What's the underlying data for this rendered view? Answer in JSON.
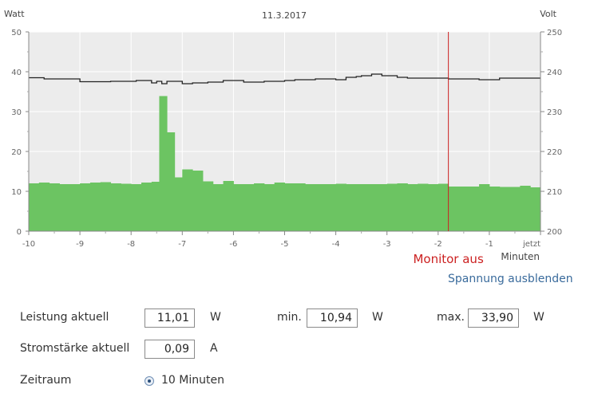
{
  "chart_data": {
    "type": "bar+line",
    "date": "11.3.2017",
    "left_unit": "Watt",
    "right_unit": "Volt",
    "x_label": "Minuten",
    "xlim": [
      -10,
      0
    ],
    "x_ticks": [
      "-10",
      "-9",
      "-8",
      "-7",
      "-6",
      "-5",
      "-4",
      "-3",
      "-2",
      "-1",
      "jetzt"
    ],
    "y_left": {
      "lim": [
        0,
        50
      ],
      "ticks": [
        "0",
        "10",
        "20",
        "30",
        "40",
        "50"
      ]
    },
    "y_right": {
      "lim": [
        200,
        250
      ],
      "ticks": [
        "200",
        "210",
        "220",
        "230",
        "240",
        "250"
      ]
    },
    "series": [
      {
        "name": "Leistung",
        "type": "bar",
        "axis": "left",
        "color": "#6cc462",
        "x_start": [
          -10.0,
          -9.8,
          -9.6,
          -9.4,
          -9.2,
          -9.0,
          -8.8,
          -8.6,
          -8.4,
          -8.2,
          -8.0,
          -7.8,
          -7.6,
          -7.45,
          -7.3,
          -7.15,
          -7.0,
          -6.8,
          -6.6,
          -6.4,
          -6.2,
          -6.0,
          -5.8,
          -5.6,
          -5.4,
          -5.2,
          -5.0,
          -4.8,
          -4.6,
          -4.4,
          -4.2,
          -4.0,
          -3.8,
          -3.6,
          -3.4,
          -3.2,
          -3.0,
          -2.8,
          -2.6,
          -2.4,
          -2.2,
          -2.0,
          -1.8,
          -1.6,
          -1.4,
          -1.2,
          -1.0,
          -0.8,
          -0.6,
          -0.4,
          -0.2
        ],
        "x_end": [
          -9.8,
          -9.6,
          -9.4,
          -9.2,
          -9.0,
          -8.8,
          -8.6,
          -8.4,
          -8.2,
          -8.0,
          -7.8,
          -7.6,
          -7.45,
          -7.3,
          -7.15,
          -7.0,
          -6.8,
          -6.6,
          -6.4,
          -6.2,
          -6.0,
          -5.8,
          -5.6,
          -5.4,
          -5.2,
          -5.0,
          -4.8,
          -4.6,
          -4.4,
          -4.2,
          -4.0,
          -3.8,
          -3.6,
          -3.4,
          -3.2,
          -3.0,
          -2.8,
          -2.6,
          -2.4,
          -2.2,
          -2.0,
          -1.8,
          -1.6,
          -1.4,
          -1.2,
          -1.0,
          -0.8,
          -0.6,
          -0.4,
          -0.2,
          0.0
        ],
        "values": [
          12.0,
          12.2,
          12.0,
          11.8,
          11.8,
          12.0,
          12.2,
          12.3,
          12.0,
          11.9,
          11.8,
          12.2,
          12.4,
          33.9,
          24.8,
          13.5,
          15.5,
          15.2,
          12.5,
          11.8,
          12.6,
          11.8,
          11.8,
          12.0,
          11.8,
          12.2,
          12.0,
          12.0,
          11.8,
          11.8,
          11.8,
          11.9,
          11.8,
          11.8,
          11.8,
          11.8,
          11.9,
          12.0,
          11.8,
          11.9,
          11.8,
          11.9,
          11.2,
          11.2,
          11.2,
          11.8,
          11.2,
          11.1,
          11.1,
          11.4,
          11.0
        ]
      },
      {
        "name": "Spannung",
        "type": "step-line",
        "axis": "right",
        "color": "#222222",
        "x": [
          -10.0,
          -9.7,
          -9.0,
          -8.4,
          -7.9,
          -7.6,
          -7.5,
          -7.4,
          -7.3,
          -7.0,
          -6.8,
          -6.5,
          -6.2,
          -5.8,
          -5.4,
          -5.0,
          -4.8,
          -4.4,
          -4.0,
          -3.8,
          -3.6,
          -3.5,
          -3.3,
          -3.1,
          -2.8,
          -2.6,
          -2.2,
          -1.8,
          -1.4,
          -1.2,
          -0.8,
          -0.2,
          0.0
        ],
        "values": [
          238.5,
          238.2,
          237.5,
          237.6,
          237.8,
          237.2,
          237.6,
          237.0,
          237.6,
          237.0,
          237.2,
          237.4,
          237.8,
          237.4,
          237.6,
          237.8,
          238.0,
          238.2,
          238.0,
          238.6,
          238.8,
          239.0,
          239.4,
          239.0,
          238.6,
          238.4,
          238.4,
          238.2,
          238.2,
          238.0,
          238.4,
          238.4,
          238.4
        ]
      }
    ],
    "annotations": [
      {
        "x": -1.8,
        "label": "Monitor aus",
        "color": "#cc2222"
      }
    ],
    "grid": {
      "horizontal": true,
      "vertical": true
    },
    "plot_background": "#ececec"
  },
  "links": {
    "toggle_voltage": "Spannung ausblenden"
  },
  "stats": {
    "power_label": "Leistung aktuell",
    "power_value": "11,01",
    "power_unit": "W",
    "min_label": "min.",
    "min_value": "10,94",
    "min_unit": "W",
    "max_label": "max.",
    "max_value": "33,90",
    "max_unit": "W",
    "current_label": "Stromstärke aktuell",
    "current_value": "0,09",
    "current_unit": "A"
  },
  "range": {
    "label": "Zeitraum",
    "selected_option": "10 Minuten"
  }
}
